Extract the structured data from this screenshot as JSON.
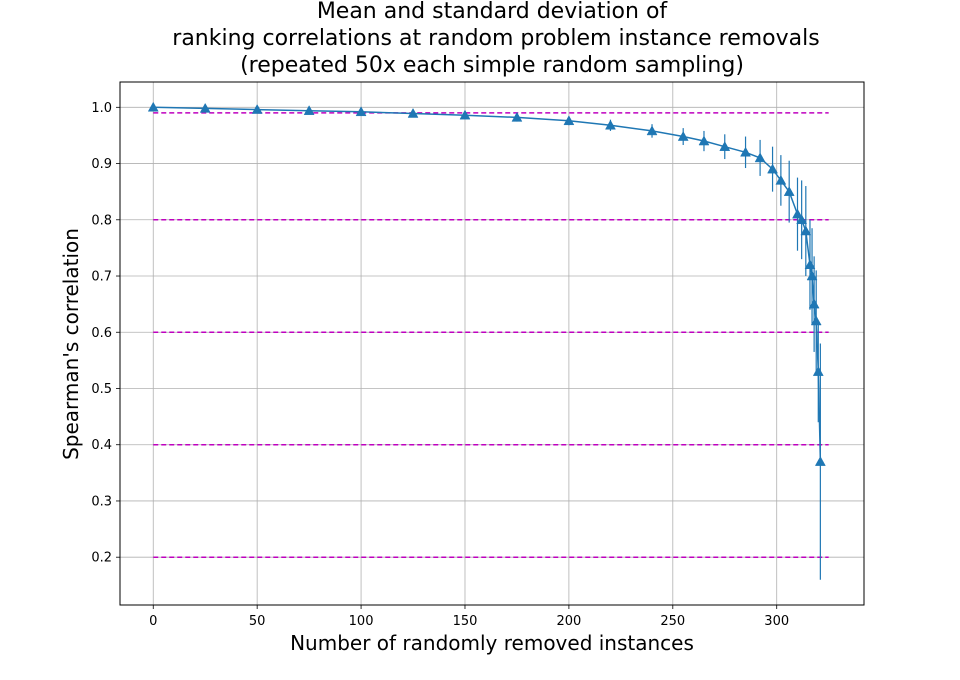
{
  "chart_data": {
    "type": "line",
    "title_lines": [
      "Mean and standard deviation of",
      "ranking correlations at random problem instance removals",
      "(repeated 50x each simple random sampling)"
    ],
    "xlabel": "Number of randomly removed instances",
    "ylabel": "Spearman's correlation",
    "xlim": [
      -16,
      342
    ],
    "ylim": [
      0.115,
      1.045
    ],
    "x_ticks": [
      0,
      50,
      100,
      150,
      200,
      250,
      300
    ],
    "x_tick_labels": [
      "0",
      "50",
      "100",
      "150",
      "200",
      "250",
      "300"
    ],
    "y_ticks": [
      0.2,
      0.3,
      0.4,
      0.5,
      0.6,
      0.7,
      0.8,
      0.9,
      1.0
    ],
    "y_tick_labels": [
      "0.2",
      "0.3",
      "0.4",
      "0.5",
      "0.6",
      "0.7",
      "0.8",
      "0.9",
      "1.0"
    ],
    "grid": true,
    "series_color": "#1f77b4",
    "marker": "triangle-up",
    "reference_color": "#bf00bf",
    "reference_lines": [
      {
        "y": 0.99,
        "x_range": [
          0,
          325
        ]
      },
      {
        "y": 0.8,
        "x_range": [
          0,
          325
        ]
      },
      {
        "y": 0.6,
        "x_range": [
          0,
          325
        ]
      },
      {
        "y": 0.4,
        "x_range": [
          0,
          325
        ]
      },
      {
        "y": 0.2,
        "x_range": [
          0,
          325
        ]
      }
    ],
    "series": [
      {
        "x": [
          0,
          25,
          50,
          75,
          100,
          125,
          150,
          175,
          200,
          220,
          240,
          255,
          265,
          275,
          285,
          292,
          298,
          302,
          306,
          310,
          312,
          314,
          316,
          317,
          318,
          319,
          320,
          321
        ],
        "mean": [
          1.0,
          0.998,
          0.996,
          0.994,
          0.992,
          0.989,
          0.986,
          0.982,
          0.976,
          0.968,
          0.958,
          0.948,
          0.94,
          0.93,
          0.92,
          0.91,
          0.89,
          0.87,
          0.85,
          0.81,
          0.8,
          0.78,
          0.72,
          0.7,
          0.65,
          0.62,
          0.53,
          0.37
        ],
        "std": [
          0.001,
          0.002,
          0.003,
          0.003,
          0.004,
          0.005,
          0.006,
          0.007,
          0.008,
          0.01,
          0.012,
          0.015,
          0.018,
          0.022,
          0.028,
          0.032,
          0.04,
          0.045,
          0.055,
          0.065,
          0.07,
          0.08,
          0.08,
          0.085,
          0.085,
          0.09,
          0.09,
          0.21
        ]
      }
    ]
  }
}
